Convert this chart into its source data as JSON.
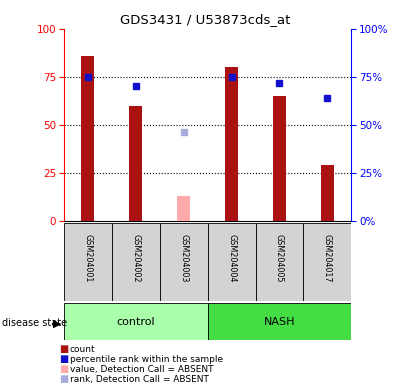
{
  "title": "GDS3431 / U53873cds_at",
  "samples": [
    "GSM204001",
    "GSM204002",
    "GSM204003",
    "GSM204004",
    "GSM204005",
    "GSM204017"
  ],
  "count_values": [
    86,
    60,
    null,
    80,
    65,
    29
  ],
  "percentile_values": [
    75,
    70,
    null,
    75,
    72,
    64
  ],
  "absent_value": [
    null,
    null,
    13,
    null,
    null,
    null
  ],
  "absent_rank": [
    null,
    null,
    46,
    null,
    null,
    null
  ],
  "bar_color": "#AA1111",
  "absent_bar_color": "#FFAAAA",
  "dot_color": "#1111CC",
  "absent_dot_color": "#AAAADD",
  "ylim": [
    0,
    100
  ],
  "yticks": [
    0,
    25,
    50,
    75,
    100
  ],
  "gray_bg": "#D3D3D3",
  "control_color": "#AAFFAA",
  "nash_color": "#44DD44",
  "background_color": "#FFFFFF"
}
